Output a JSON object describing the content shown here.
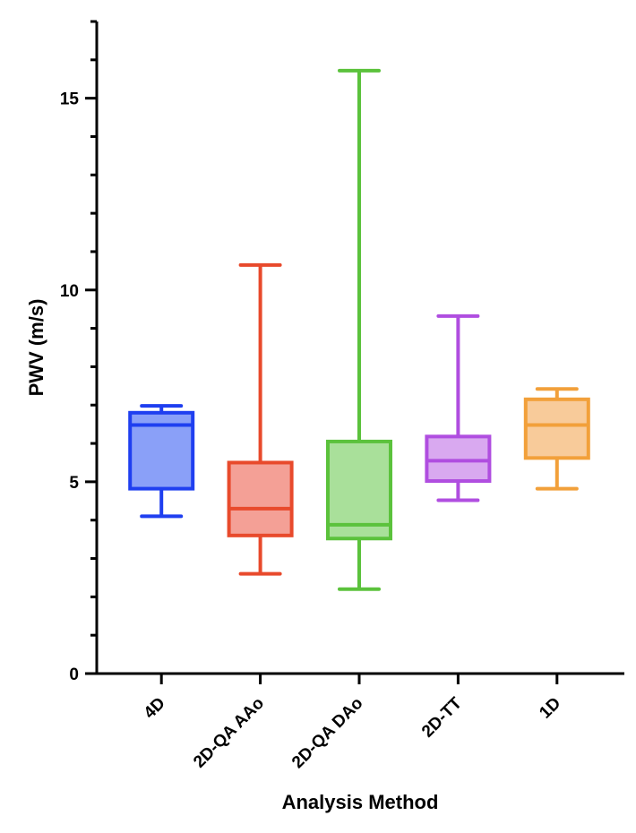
{
  "chart_data": {
    "type": "box",
    "xlabel": "Analysis Method",
    "ylabel": "PWV (m/s)",
    "ylim": [
      0,
      17
    ],
    "major_ticks": [
      0,
      5,
      10,
      15
    ],
    "minor_tick_step": 1,
    "tick_labels": [
      "0",
      "5",
      "10",
      "15"
    ],
    "categories": [
      "4D",
      "2D-QA AAo",
      "2D-QA DAo",
      "2D-TT",
      "1D"
    ],
    "series": [
      {
        "name": "4D",
        "min": 4.1,
        "q1": 4.82,
        "median": 6.48,
        "q3": 6.8,
        "max": 6.98,
        "color": "#1f3ff0",
        "fill": "#8aa0f8"
      },
      {
        "name": "2D-QA AAo",
        "min": 2.6,
        "q1": 3.6,
        "median": 4.3,
        "q3": 5.5,
        "max": 10.65,
        "color": "#e84a2c",
        "fill": "#f4a096"
      },
      {
        "name": "2D-QA DAo",
        "min": 2.2,
        "q1": 3.52,
        "median": 3.88,
        "q3": 6.05,
        "max": 15.72,
        "color": "#5bc23c",
        "fill": "#a9e09a"
      },
      {
        "name": "2D-TT",
        "min": 4.52,
        "q1": 5.02,
        "median": 5.55,
        "q3": 6.18,
        "max": 9.32,
        "color": "#b04ee0",
        "fill": "#d9a9f0"
      },
      {
        "name": "1D",
        "min": 4.82,
        "q1": 5.62,
        "median": 6.48,
        "q3": 7.15,
        "max": 7.42,
        "color": "#f2a03a",
        "fill": "#f8cb9a"
      }
    ]
  }
}
